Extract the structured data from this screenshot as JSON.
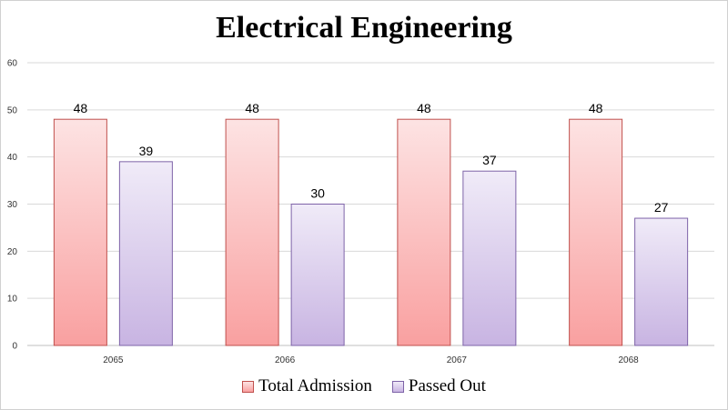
{
  "chart_data": {
    "type": "bar",
    "title": "Electrical Engineering",
    "categories": [
      "2065",
      "2066",
      "2067",
      "2068"
    ],
    "series": [
      {
        "name": "Total Admission",
        "values": [
          48,
          48,
          48,
          48
        ],
        "color_top": "#fde3e3",
        "color_bottom": "#f9a0a0",
        "border": "#c0504d"
      },
      {
        "name": "Passed Out",
        "values": [
          39,
          30,
          37,
          27
        ],
        "color_top": "#f0ebf8",
        "color_bottom": "#c8b4e2",
        "border": "#7e63a8"
      }
    ],
    "ylim": [
      0,
      60
    ],
    "yticks": [
      0,
      10,
      20,
      30,
      40,
      50,
      60
    ],
    "grid": true,
    "legend_position": "bottom",
    "data_labels": true
  }
}
